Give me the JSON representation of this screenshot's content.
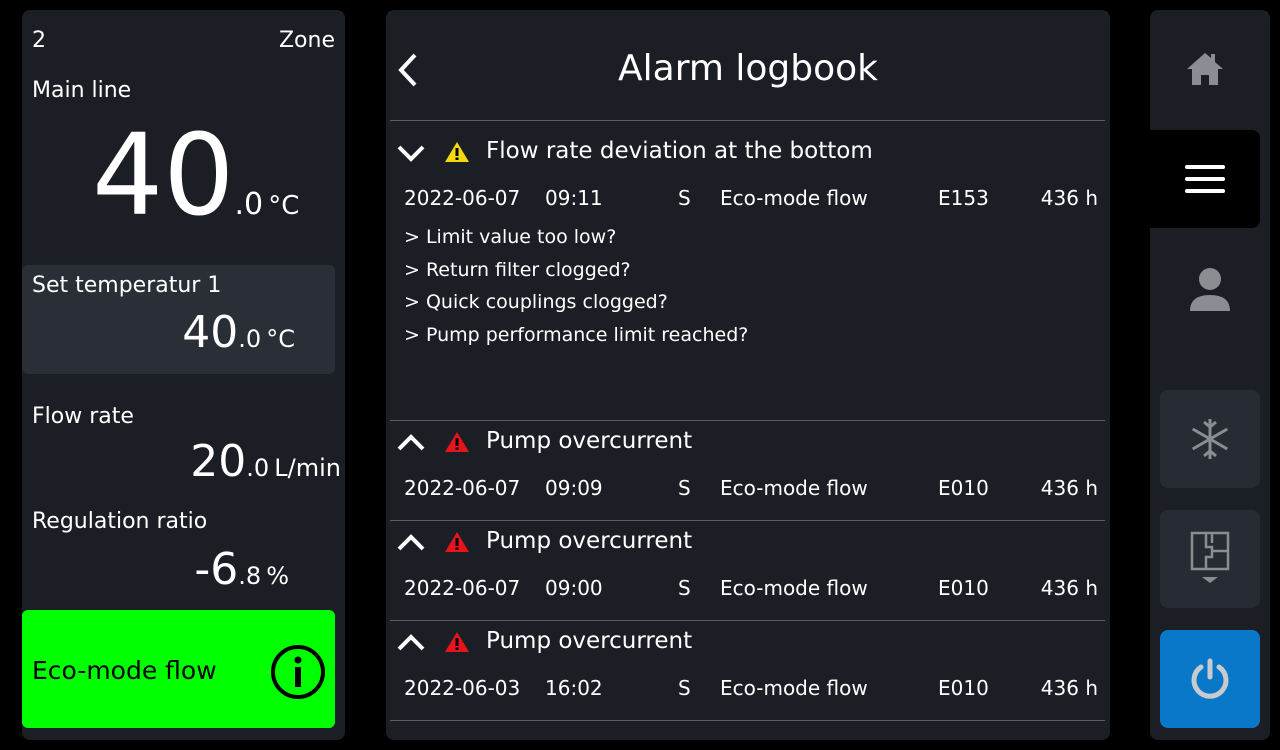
{
  "left": {
    "zone_number": "2",
    "zone_label": "Zone",
    "main_line_label": "Main line",
    "main_temp_int": "40",
    "main_temp_dec": ".0",
    "main_temp_unit": "°C",
    "set_temp_label": "Set temperatur 1",
    "set_temp_int": "40",
    "set_temp_dec": ".0",
    "set_temp_unit": "°C",
    "flow_label": "Flow rate",
    "flow_int": "20",
    "flow_dec": ".0",
    "flow_unit": "L/min",
    "ratio_label": "Regulation ratio",
    "ratio_int": "-6",
    "ratio_dec": ".8",
    "ratio_unit": "%",
    "mode_label": "Eco-mode flow",
    "mode_color": "#00ff00"
  },
  "logbook": {
    "title": "Alarm logbook",
    "alarms": [
      {
        "title": "Flow rate deviation at the bottom",
        "severity": "warning",
        "expanded": true,
        "date": "2022-06-07",
        "time": "09:11",
        "type": "S",
        "mode": "Eco-mode flow",
        "code": "E153",
        "hours": "436 h",
        "causes": [
          "> Limit value too low?",
          "> Return filter clogged?",
          "> Quick couplings clogged?",
          "> Pump performance limit reached?"
        ]
      },
      {
        "title": "Pump overcurrent",
        "severity": "error",
        "expanded": false,
        "date": "2022-06-07",
        "time": "09:09",
        "type": "S",
        "mode": "Eco-mode flow",
        "code": "E010",
        "hours": "436 h"
      },
      {
        "title": "Pump overcurrent",
        "severity": "error",
        "expanded": false,
        "date": "2022-06-07",
        "time": "09:00",
        "type": "S",
        "mode": "Eco-mode flow",
        "code": "E010",
        "hours": "436 h"
      },
      {
        "title": "Pump overcurrent",
        "severity": "error",
        "expanded": false,
        "date": "2022-06-03",
        "time": "16:02",
        "type": "S",
        "mode": "Eco-mode flow",
        "code": "E010",
        "hours": "436 h"
      }
    ]
  },
  "nav": {
    "items": [
      "home-icon",
      "menu-icon",
      "user-icon",
      "snowflake-icon",
      "floorplan-icon",
      "power-icon"
    ],
    "active": "menu-icon",
    "power_color": "#0a78c8",
    "warning_color": "#f5d90a",
    "error_color": "#e8141c"
  }
}
